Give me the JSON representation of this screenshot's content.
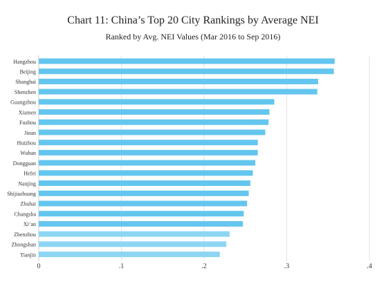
{
  "chart_data": {
    "type": "bar",
    "orientation": "horizontal",
    "title": "Chart 11: China’s Top 20 City Rankings by Average NEI",
    "subtitle": "Ranked by Avg. NEI Values (Mar 2016 to Sep 2016)",
    "categories": [
      "Hangzhou",
      "Beijing",
      "Shanghai",
      "Shenzhen",
      "Guangzhou",
      "Xiamen",
      "Fuzhou",
      "Jinan",
      "Huizhou",
      "Wuhan",
      "Dongguan",
      "Hefei",
      "Nanjing",
      "Shijiazhuang",
      "Zhuhai",
      "Changsha",
      "Xi’an",
      "Zhenzhou",
      "Zhongshan",
      "Tianjin"
    ],
    "values": [
      0.358,
      0.357,
      0.338,
      0.337,
      0.285,
      0.279,
      0.278,
      0.274,
      0.265,
      0.265,
      0.262,
      0.259,
      0.256,
      0.254,
      0.252,
      0.248,
      0.247,
      0.231,
      0.227,
      0.219
    ],
    "xlim": [
      0,
      0.4
    ],
    "x_ticks": [
      "0",
      ".1",
      ".2",
      ".3",
      ".4"
    ],
    "x_tick_values": [
      0,
      0.1,
      0.2,
      0.3,
      0.4
    ],
    "grid": "vertical",
    "bar_color": "#64c6ee",
    "bar_color_light": "#8dd6f3"
  }
}
